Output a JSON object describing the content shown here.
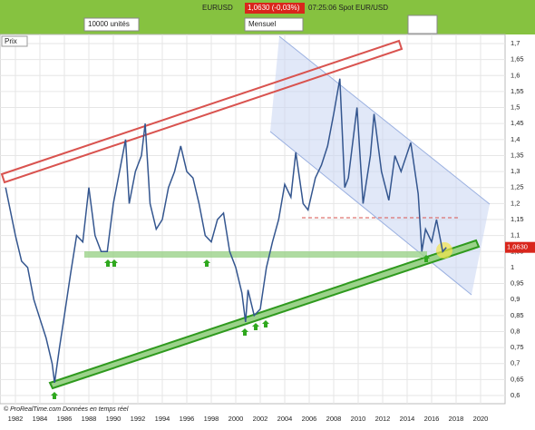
{
  "toolbar": {
    "quantity": "10000 unités",
    "symbol": "EURUSD",
    "quote": "1,0630 (-0,03%)",
    "time": "07:25:06 Spot EUR/USD",
    "period": "Mensuel",
    "panel": "Prix"
  },
  "footer": "© ProRealTime.com Données en temps réel",
  "chart_data": {
    "type": "line",
    "color": "#34568f",
    "x": [
      1981.2,
      1982.0,
      1982.5,
      1983.0,
      1983.5,
      1984.0,
      1984.5,
      1985.0,
      1985.2,
      1985.6,
      1986.0,
      1986.5,
      1987.0,
      1987.5,
      1988.0,
      1988.5,
      1989.0,
      1989.5,
      1990.0,
      1990.5,
      1991.0,
      1991.3,
      1991.8,
      1992.3,
      1992.6,
      1993.0,
      1993.5,
      1994.0,
      1994.5,
      1995.0,
      1995.5,
      1996.0,
      1996.5,
      1997.0,
      1997.5,
      1998.0,
      1998.5,
      1999.0,
      1999.5,
      2000.0,
      2000.5,
      2000.8,
      2001.0,
      2001.5,
      2002.0,
      2002.5,
      2003.0,
      2003.5,
      2004.0,
      2004.5,
      2004.9,
      2005.5,
      2005.9,
      2006.5,
      2007.0,
      2007.5,
      2008.0,
      2008.5,
      2008.9,
      2009.2,
      2009.9,
      2010.4,
      2011.0,
      2011.3,
      2011.9,
      2012.5,
      2013.0,
      2013.5,
      2014.3,
      2014.9,
      2015.2,
      2015.5,
      2016.0,
      2016.4,
      2016.9,
      2017.2
    ],
    "values": [
      1.25,
      1.1,
      1.02,
      1.0,
      0.9,
      0.84,
      0.78,
      0.7,
      0.64,
      0.75,
      0.85,
      0.98,
      1.1,
      1.08,
      1.25,
      1.1,
      1.05,
      1.05,
      1.2,
      1.3,
      1.4,
      1.2,
      1.3,
      1.35,
      1.45,
      1.2,
      1.12,
      1.15,
      1.25,
      1.3,
      1.38,
      1.3,
      1.28,
      1.2,
      1.1,
      1.08,
      1.15,
      1.17,
      1.05,
      1.0,
      0.92,
      0.83,
      0.93,
      0.85,
      0.87,
      1.0,
      1.08,
      1.15,
      1.26,
      1.22,
      1.36,
      1.2,
      1.18,
      1.28,
      1.32,
      1.38,
      1.48,
      1.59,
      1.25,
      1.28,
      1.5,
      1.2,
      1.35,
      1.48,
      1.3,
      1.21,
      1.35,
      1.3,
      1.39,
      1.23,
      1.05,
      1.12,
      1.08,
      1.15,
      1.05,
      1.063
    ],
    "xlim": [
      1982,
      2020
    ],
    "xticks": [
      1982,
      1984,
      1986,
      1988,
      1990,
      1992,
      1994,
      1996,
      1998,
      2000,
      2002,
      2004,
      2006,
      2008,
      2010,
      2012,
      2014,
      2016,
      2018,
      2020
    ],
    "ylim": [
      0.6,
      1.7
    ],
    "yticks": [
      {
        "value": 0.6,
        "label": "0,6"
      },
      {
        "value": 0.65,
        "label": "0,65"
      },
      {
        "value": 0.7,
        "label": "0,7"
      },
      {
        "value": 0.75,
        "label": "0,75"
      },
      {
        "value": 0.8,
        "label": "0,8"
      },
      {
        "value": 0.85,
        "label": "0,85"
      },
      {
        "value": 0.9,
        "label": "0,9"
      },
      {
        "value": 0.95,
        "label": "0,95"
      },
      {
        "value": 1,
        "label": "1"
      },
      {
        "value": 1.05,
        "label": "1,05"
      },
      {
        "value": 1.1,
        "label": "1,1"
      },
      {
        "value": 1.15,
        "label": "1,15"
      },
      {
        "value": 1.2,
        "label": "1,2"
      },
      {
        "value": 1.25,
        "label": "1,25"
      },
      {
        "value": 1.3,
        "label": "1,3"
      },
      {
        "value": 1.35,
        "label": "1,35"
      },
      {
        "value": 1.4,
        "label": "1,4"
      },
      {
        "value": 1.45,
        "label": "1,45"
      },
      {
        "value": 1.5,
        "label": "1,5"
      },
      {
        "value": 1.55,
        "label": "1,55"
      },
      {
        "value": 1.6,
        "label": "1,6"
      },
      {
        "value": 1.65,
        "label": "1,65"
      },
      {
        "value": 1.7,
        "label": "1,7"
      }
    ],
    "grid": true,
    "price_tag": {
      "value": 1.063,
      "label": "1,0630"
    }
  }
}
